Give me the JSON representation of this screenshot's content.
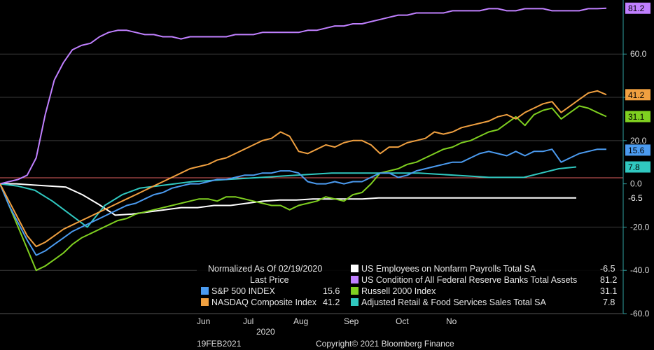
{
  "chart_data": {
    "type": "line",
    "title": "",
    "xlabel": "",
    "ylabel": "",
    "x_ticks": [
      "Jun",
      "Jul",
      "Aug",
      "Sep",
      "Oct",
      "No"
    ],
    "x_year_label": "2020",
    "ylim": [
      -60,
      85
    ],
    "y_ticks": [
      60.0,
      40.0,
      20.0,
      0.0,
      -20.0,
      -40.0,
      -60.0
    ],
    "grid": true,
    "legend_position": "bottom-right",
    "normalized_label": "Normalized As Of 02/19/2020",
    "last_price_label": "Last Price",
    "series": [
      {
        "name": "S&P 500 INDEX",
        "color": "#4b9bf0",
        "last": 15.6,
        "values": [
          0,
          -10,
          -18,
          -26,
          -33,
          -31,
          -28,
          -25,
          -22,
          -20,
          -18,
          -16,
          -14,
          -12,
          -10,
          -9,
          -7,
          -5,
          -4,
          -2,
          -1,
          0,
          0,
          1,
          2,
          2,
          3,
          4,
          4,
          5,
          5,
          6,
          6,
          5,
          1,
          0,
          0,
          1,
          0,
          1,
          1,
          3,
          5,
          5,
          3,
          4,
          6,
          7,
          8,
          9,
          10,
          10,
          12,
          14,
          15,
          14,
          13,
          15,
          13,
          15,
          15,
          16,
          10,
          12,
          14,
          15,
          16,
          16
        ]
      },
      {
        "name": "NASDAQ Composite Index",
        "color": "#f0a040",
        "last": 41.2,
        "values": [
          0,
          -8,
          -16,
          -24,
          -29,
          -27,
          -24,
          -21,
          -19,
          -17,
          -15,
          -13,
          -11,
          -9,
          -7,
          -5,
          -3,
          -1,
          1,
          3,
          5,
          7,
          8,
          9,
          11,
          12,
          14,
          16,
          18,
          20,
          21,
          24,
          22,
          15,
          14,
          16,
          18,
          17,
          19,
          20,
          20,
          18,
          14,
          17,
          17,
          19,
          20,
          21,
          24,
          23,
          24,
          26,
          27,
          28,
          29,
          31,
          32,
          30,
          33,
          35,
          37,
          38,
          33,
          36,
          39,
          42,
          43,
          41.2
        ]
      },
      {
        "name": "Russell 2000 Index",
        "color": "#7fd020",
        "last": 31.1,
        "values": [
          0,
          -10,
          -20,
          -30,
          -40,
          -38,
          -35,
          -32,
          -28,
          -25,
          -23,
          -21,
          -19,
          -17,
          -16,
          -14,
          -13,
          -12,
          -11,
          -10,
          -9,
          -8,
          -7,
          -7,
          -8,
          -6,
          -6,
          -7,
          -8,
          -9,
          -10,
          -10,
          -12,
          -10,
          -9,
          -8,
          -6,
          -7,
          -8,
          -5,
          -4,
          0,
          5,
          6,
          7,
          9,
          10,
          12,
          14,
          16,
          17,
          19,
          20,
          22,
          24,
          25,
          28,
          31,
          27,
          32,
          34,
          35,
          30,
          33,
          36,
          35,
          33,
          31.1
        ]
      },
      {
        "name": "US Condition of All Federal Reserve Banks Total Assets",
        "color": "#c080ff",
        "last": 81.2,
        "values": [
          0,
          1,
          2,
          4,
          12,
          32,
          48,
          56,
          62,
          64,
          65,
          68,
          70,
          71,
          71,
          70,
          69,
          69,
          68,
          68,
          67,
          68,
          68,
          68,
          68,
          68,
          69,
          69,
          69,
          70,
          70,
          70,
          70,
          70,
          71,
          71,
          72,
          73,
          73,
          74,
          74,
          75,
          76,
          77,
          78,
          78,
          79,
          79,
          79,
          79,
          80,
          80,
          80,
          80,
          81,
          81,
          80,
          80,
          81,
          81,
          81,
          80,
          80,
          80,
          80,
          81,
          81,
          81.2
        ]
      },
      {
        "name": "US Employees on Nonfarm Payrolls Total SA",
        "color": "#ffffff",
        "last": -6.5,
        "values": [
          0,
          0,
          -0.5,
          -1,
          -1.5,
          -5,
          -9.5,
          -14.5,
          -14,
          -13,
          -12,
          -11,
          -11,
          -10,
          -10,
          -9,
          -8,
          -7.5,
          -7.5,
          -7,
          -7,
          -7,
          -7,
          -6.5,
          -6.5,
          -6.5,
          -6.5,
          -6.5,
          -6.5,
          -6.5,
          -6.5,
          -6.5,
          -6.5,
          -6.5,
          -6.5,
          -6.5
        ]
      },
      {
        "name": "Adjusted Retail & Food Services Sales Total SA",
        "color": "#30c8c0",
        "last": 7.8,
        "values": [
          0,
          -1,
          -3,
          -8,
          -14,
          -20,
          -10,
          -5,
          -2,
          -1,
          0,
          1,
          1.5,
          2,
          2.5,
          3,
          3.5,
          4,
          4.5,
          5,
          5,
          5,
          5,
          5,
          5,
          4.5,
          4,
          3.5,
          3,
          3,
          3,
          5,
          7,
          7.8
        ]
      }
    ]
  },
  "footer": {
    "date": "19FEB2021",
    "copyright": "Copyright© 2021 Bloomberg Finance"
  }
}
